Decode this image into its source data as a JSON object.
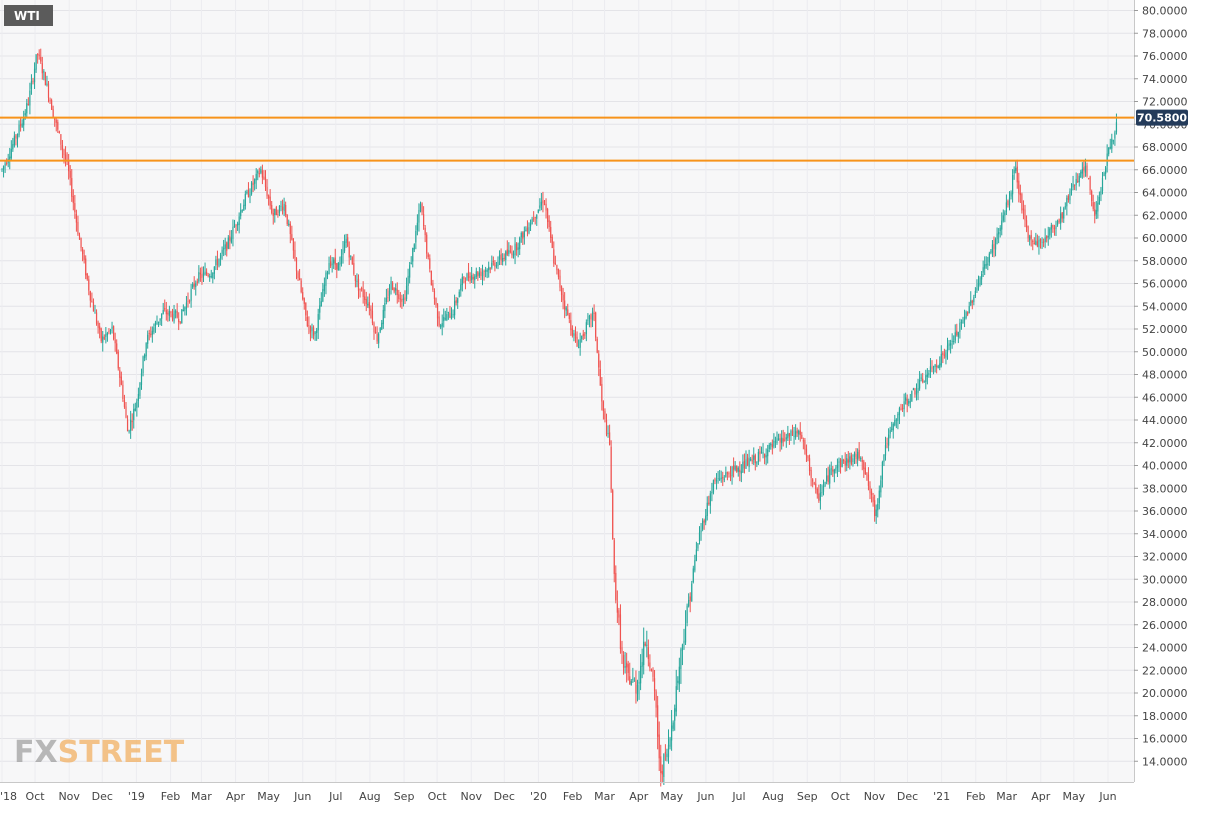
{
  "symbol_badge": "WTI",
  "watermark": {
    "fx": "FX",
    "street": "STREET"
  },
  "current_price_label": "70.5800",
  "colors": {
    "up": "#26a69a",
    "down": "#ef5350",
    "wick": "#555555",
    "resistance": "#f7931a",
    "badge_bg": "#5b5b5b",
    "price_tag_bg": "#243b5a"
  },
  "chart_data": {
    "type": "candlestick",
    "title": "WTI",
    "ylim": [
      13,
      81
    ],
    "y_ticks": [
      80.0,
      78.0,
      76.0,
      74.0,
      72.0,
      70.0,
      68.0,
      66.0,
      64.0,
      62.0,
      60.0,
      58.0,
      56.0,
      54.0,
      52.0,
      50.0,
      48.0,
      46.0,
      44.0,
      42.0,
      40.0,
      38.0,
      36.0,
      34.0,
      32.0,
      30.0,
      28.0,
      26.0,
      24.0,
      22.0,
      20.0,
      18.0,
      16.0,
      14.0
    ],
    "y_tick_labels": [
      "80.0000",
      "78.0000",
      "76.0000",
      "74.0000",
      "72.0000",
      "70.0000",
      "68.0000",
      "66.0000",
      "64.0000",
      "62.0000",
      "60.0000",
      "58.0000",
      "56.0000",
      "54.0000",
      "52.0000",
      "50.0000",
      "48.0000",
      "46.0000",
      "44.0000",
      "42.0000",
      "40.0000",
      "38.0000",
      "36.0000",
      "34.0000",
      "32.0000",
      "30.0000",
      "28.0000",
      "26.0000",
      "24.0000",
      "22.0000",
      "20.0000",
      "18.0000",
      "16.0000",
      "14.0000"
    ],
    "x_tick_labels": [
      "'18",
      "Oct",
      "Nov",
      "Dec",
      "'19",
      "Feb",
      "Mar",
      "Apr",
      "May",
      "Jun",
      "Jul",
      "Aug",
      "Sep",
      "Oct",
      "Nov",
      "Dec",
      "'20",
      "Feb",
      "Mar",
      "Apr",
      "May",
      "Jun",
      "Jul",
      "Aug",
      "Sep",
      "Oct",
      "Nov",
      "Dec",
      "'21",
      "Feb",
      "Mar",
      "Apr",
      "May",
      "Jun"
    ],
    "resistance_levels": [
      70.58,
      66.8
    ],
    "last_price": 70.58,
    "price_path": [
      [
        "2018-09-01",
        66.0
      ],
      [
        "2018-09-10",
        68.0
      ],
      [
        "2018-09-20",
        70.5
      ],
      [
        "2018-09-25",
        72.0
      ],
      [
        "2018-10-03",
        76.3
      ],
      [
        "2018-10-10",
        74.0
      ],
      [
        "2018-10-20",
        70.0
      ],
      [
        "2018-10-31",
        66.0
      ],
      [
        "2018-11-10",
        60.0
      ],
      [
        "2018-11-20",
        55.0
      ],
      [
        "2018-11-30",
        51.0
      ],
      [
        "2018-12-10",
        52.0
      ],
      [
        "2018-12-20",
        46.0
      ],
      [
        "2018-12-24",
        43.0
      ],
      [
        "2019-01-01",
        45.5
      ],
      [
        "2019-01-10",
        51.0
      ],
      [
        "2019-01-25",
        53.5
      ],
      [
        "2019-02-10",
        53.0
      ],
      [
        "2019-02-25",
        56.5
      ],
      [
        "2019-03-10",
        57.0
      ],
      [
        "2019-03-25",
        59.5
      ],
      [
        "2019-04-10",
        63.5
      ],
      [
        "2019-04-24",
        66.0
      ],
      [
        "2019-05-05",
        62.0
      ],
      [
        "2019-05-15",
        63.0
      ],
      [
        "2019-05-25",
        58.0
      ],
      [
        "2019-06-05",
        52.5
      ],
      [
        "2019-06-12",
        51.5
      ],
      [
        "2019-06-25",
        58.0
      ],
      [
        "2019-07-05",
        57.5
      ],
      [
        "2019-07-10",
        60.0
      ],
      [
        "2019-07-20",
        56.0
      ],
      [
        "2019-08-01",
        54.0
      ],
      [
        "2019-08-07",
        51.0
      ],
      [
        "2019-08-20",
        56.0
      ],
      [
        "2019-09-01",
        54.5
      ],
      [
        "2019-09-16",
        62.9
      ],
      [
        "2019-09-25",
        56.5
      ],
      [
        "2019-10-03",
        52.5
      ],
      [
        "2019-10-15",
        53.5
      ],
      [
        "2019-10-25",
        56.5
      ],
      [
        "2019-11-10",
        57.0
      ],
      [
        "2019-11-25",
        58.0
      ],
      [
        "2019-12-10",
        59.0
      ],
      [
        "2019-12-25",
        61.5
      ],
      [
        "2020-01-06",
        63.5
      ],
      [
        "2020-01-15",
        58.0
      ],
      [
        "2020-01-25",
        54.0
      ],
      [
        "2020-02-05",
        50.5
      ],
      [
        "2020-02-20",
        53.5
      ],
      [
        "2020-02-28",
        45.0
      ],
      [
        "2020-03-06",
        41.5
      ],
      [
        "2020-03-09",
        31.0
      ],
      [
        "2020-03-18",
        22.0
      ],
      [
        "2020-03-30",
        20.5
      ],
      [
        "2020-04-08",
        25.0
      ],
      [
        "2020-04-17",
        18.5
      ],
      [
        "2020-04-20",
        13.0
      ],
      [
        "2020-04-28",
        15.0
      ],
      [
        "2020-05-10",
        24.0
      ],
      [
        "2020-05-25",
        33.5
      ],
      [
        "2020-06-08",
        38.5
      ],
      [
        "2020-06-25",
        39.5
      ],
      [
        "2020-07-15",
        40.5
      ],
      [
        "2020-08-05",
        42.0
      ],
      [
        "2020-08-25",
        43.0
      ],
      [
        "2020-09-05",
        39.0
      ],
      [
        "2020-09-10",
        37.0
      ],
      [
        "2020-09-25",
        40.0
      ],
      [
        "2020-10-10",
        40.5
      ],
      [
        "2020-10-20",
        41.0
      ],
      [
        "2020-11-02",
        35.5
      ],
      [
        "2020-11-10",
        41.5
      ],
      [
        "2020-11-25",
        45.0
      ],
      [
        "2020-12-15",
        47.5
      ],
      [
        "2021-01-05",
        50.0
      ],
      [
        "2021-01-20",
        52.5
      ],
      [
        "2021-02-05",
        56.5
      ],
      [
        "2021-02-20",
        60.0
      ],
      [
        "2021-03-05",
        64.0
      ],
      [
        "2021-03-08",
        66.5
      ],
      [
        "2021-03-20",
        60.0
      ],
      [
        "2021-04-01",
        59.5
      ],
      [
        "2021-04-20",
        62.0
      ],
      [
        "2021-05-01",
        65.0
      ],
      [
        "2021-05-12",
        66.0
      ],
      [
        "2021-05-20",
        62.0
      ],
      [
        "2021-06-01",
        67.5
      ],
      [
        "2021-06-10",
        70.3
      ]
    ]
  }
}
